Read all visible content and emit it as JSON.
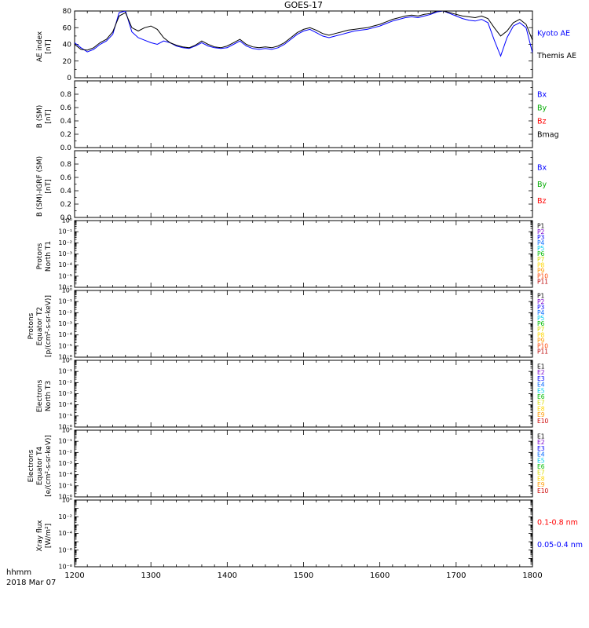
{
  "chart_data": {
    "type": "line",
    "title": "GOES-17",
    "x_unit": "hhmm",
    "date": "2018 Mar 07",
    "x_range": [
      1200,
      1800
    ],
    "x_ticks": [
      "1200",
      "1300",
      "1400",
      "1500",
      "1600",
      "1700",
      "1800"
    ],
    "panels": [
      {
        "id": "ae-index",
        "ylabel": [
          "AE index",
          "[nT]"
        ],
        "scale": "linear",
        "ylim": [
          0,
          80
        ],
        "yticks": [
          0,
          20,
          40,
          60,
          80
        ],
        "ytick_labels": [
          "0",
          "20",
          "40",
          "60",
          "80"
        ],
        "legend": [
          {
            "label": "Kyoto AE",
            "color": "#0000ff"
          },
          {
            "label": "Themis AE",
            "color": "#000000"
          }
        ],
        "x": [
          1200,
          1205,
          1210,
          1215,
          1220,
          1225,
          1230,
          1235,
          1240,
          1245,
          1250,
          1255,
          1300,
          1305,
          1310,
          1315,
          1320,
          1325,
          1330,
          1335,
          1340,
          1345,
          1350,
          1355,
          1400,
          1405,
          1410,
          1415,
          1420,
          1425,
          1430,
          1435,
          1440,
          1445,
          1450,
          1455,
          1500,
          1505,
          1510,
          1515,
          1520,
          1525,
          1530,
          1535,
          1540,
          1545,
          1550,
          1555,
          1600,
          1605,
          1610,
          1615,
          1620,
          1625,
          1630,
          1635,
          1640,
          1645,
          1650,
          1655,
          1700,
          1705,
          1710,
          1715,
          1720,
          1725,
          1730,
          1735,
          1740,
          1745,
          1750,
          1755,
          1800
        ],
        "series": [
          {
            "name": "Kyoto AE",
            "color": "#0000ff",
            "y": [
              42,
              36,
              31,
              34,
              40,
              44,
              52,
              78,
              80,
              55,
              48,
              45,
              42,
              40,
              44,
              42,
              38,
              36,
              35,
              38,
              42,
              38,
              36,
              35,
              36,
              40,
              44,
              38,
              35,
              34,
              35,
              34,
              36,
              40,
              46,
              52,
              56,
              58,
              54,
              50,
              48,
              50,
              52,
              54,
              56,
              57,
              58,
              60,
              62,
              65,
              68,
              70,
              72,
              73,
              72,
              74,
              76,
              79,
              80,
              77,
              74,
              71,
              69,
              68,
              70,
              66,
              45,
              26,
              48,
              62,
              66,
              60,
              30
            ]
          },
          {
            "name": "Themis AE",
            "color": "#000000",
            "y": [
              40,
              34,
              33,
              36,
              42,
              46,
              55,
              74,
              78,
              60,
              56,
              60,
              62,
              58,
              48,
              42,
              39,
              37,
              36,
              39,
              44,
              40,
              37,
              36,
              38,
              42,
              46,
              40,
              37,
              36,
              37,
              36,
              38,
              42,
              48,
              54,
              58,
              60,
              57,
              53,
              51,
              53,
              55,
              57,
              58,
              59,
              60,
              62,
              64,
              67,
              70,
              72,
              74,
              75,
              74,
              76,
              77,
              80,
              80,
              78,
              76,
              74,
              73,
              72,
              74,
              71,
              60,
              50,
              56,
              66,
              70,
              64,
              45
            ]
          }
        ]
      },
      {
        "id": "b-sm",
        "ylabel": [
          "B (SM)",
          "[nT]"
        ],
        "scale": "linear",
        "ylim": [
          0,
          1
        ],
        "yticks": [
          0,
          0.2,
          0.4,
          0.6,
          0.8,
          1
        ],
        "ytick_labels": [
          "0.0",
          "0.2",
          "0.4",
          "0.6",
          "0.8",
          ""
        ],
        "legend": [
          {
            "label": "Bx",
            "color": "#0000ff"
          },
          {
            "label": "By",
            "color": "#00aa00"
          },
          {
            "label": "Bz",
            "color": "#ff0000"
          },
          {
            "label": "Bmag",
            "color": "#000000"
          }
        ],
        "series": []
      },
      {
        "id": "b-sm-igrf",
        "ylabel": [
          "B (SM)-IGRF (SM)",
          "[nT]"
        ],
        "scale": "linear",
        "ylim": [
          0,
          1
        ],
        "yticks": [
          0,
          0.2,
          0.4,
          0.6,
          0.8,
          1
        ],
        "ytick_labels": [
          "0.0",
          "0.2",
          "0.4",
          "0.6",
          "0.8",
          ""
        ],
        "legend": [
          {
            "label": "Bx",
            "color": "#0000ff"
          },
          {
            "label": "By",
            "color": "#00aa00"
          },
          {
            "label": "Bz",
            "color": "#ff0000"
          }
        ],
        "series": []
      },
      {
        "id": "protons-north-t1",
        "ylabel": [
          "Protons",
          "North T1"
        ],
        "scale": "log",
        "ylim_exp": [
          -6,
          0
        ],
        "yticks_exp": [
          0,
          -1,
          -2,
          -3,
          -4,
          -5,
          -6
        ],
        "legend": [
          {
            "label": "P1",
            "color": "#000000"
          },
          {
            "label": "P2",
            "color": "#7a00cc"
          },
          {
            "label": "P3",
            "color": "#0000ff"
          },
          {
            "label": "P4",
            "color": "#0066ff"
          },
          {
            "label": "P5",
            "color": "#00ccee"
          },
          {
            "label": "P6",
            "color": "#00bb00"
          },
          {
            "label": "P7",
            "color": "#d8dc00"
          },
          {
            "label": "P8",
            "color": "#ffd700"
          },
          {
            "label": "P9",
            "color": "#ff9900"
          },
          {
            "label": "P10",
            "color": "#ff4400"
          },
          {
            "label": "P11",
            "color": "#bb0000"
          }
        ],
        "series": []
      },
      {
        "id": "protons-equator-t2",
        "ylabel": [
          "Protons",
          "Equator T2",
          "[p/(cm²-s-sr-keV)]"
        ],
        "scale": "log",
        "ylim_exp": [
          -6,
          0
        ],
        "yticks_exp": [
          0,
          -1,
          -2,
          -3,
          -4,
          -5,
          -6
        ],
        "legend": [
          {
            "label": "P1",
            "color": "#000000"
          },
          {
            "label": "P2",
            "color": "#7a00cc"
          },
          {
            "label": "P3",
            "color": "#0000ff"
          },
          {
            "label": "P4",
            "color": "#0066ff"
          },
          {
            "label": "P5",
            "color": "#00ccee"
          },
          {
            "label": "P6",
            "color": "#00bb00"
          },
          {
            "label": "P7",
            "color": "#d8dc00"
          },
          {
            "label": "P8",
            "color": "#ffd700"
          },
          {
            "label": "P9",
            "color": "#ff9900"
          },
          {
            "label": "P10",
            "color": "#ff4400"
          },
          {
            "label": "P11",
            "color": "#bb0000"
          }
        ],
        "series": []
      },
      {
        "id": "electrons-north-t3",
        "ylabel": [
          "Electrons",
          "North T3"
        ],
        "scale": "log",
        "ylim_exp": [
          -6,
          0
        ],
        "yticks_exp": [
          0,
          -1,
          -2,
          -3,
          -4,
          -5,
          -6
        ],
        "legend": [
          {
            "label": "E1",
            "color": "#000000"
          },
          {
            "label": "E2",
            "color": "#7a00cc"
          },
          {
            "label": "E3",
            "color": "#0000ff"
          },
          {
            "label": "E4",
            "color": "#0066ff"
          },
          {
            "label": "E5",
            "color": "#00ccee"
          },
          {
            "label": "E6",
            "color": "#00bb00"
          },
          {
            "label": "E7",
            "color": "#d8dc00"
          },
          {
            "label": "E8",
            "color": "#ffd700"
          },
          {
            "label": "E9",
            "color": "#ff9900"
          },
          {
            "label": "E10",
            "color": "#cc0000"
          }
        ],
        "series": []
      },
      {
        "id": "electrons-equator-t4",
        "ylabel": [
          "Electrons",
          "Equator T4",
          "[e/(cm²-s-sr-keV)]"
        ],
        "scale": "log",
        "ylim_exp": [
          -6,
          0
        ],
        "yticks_exp": [
          0,
          -1,
          -2,
          -3,
          -4,
          -5,
          -6
        ],
        "legend": [
          {
            "label": "E1",
            "color": "#000000"
          },
          {
            "label": "E2",
            "color": "#7a00cc"
          },
          {
            "label": "E3",
            "color": "#0000ff"
          },
          {
            "label": "E4",
            "color": "#0066ff"
          },
          {
            "label": "E5",
            "color": "#00ccee"
          },
          {
            "label": "E6",
            "color": "#00bb00"
          },
          {
            "label": "E7",
            "color": "#d8dc00"
          },
          {
            "label": "E8",
            "color": "#ffd700"
          },
          {
            "label": "E9",
            "color": "#ff9900"
          },
          {
            "label": "E10",
            "color": "#cc0000"
          }
        ],
        "series": []
      },
      {
        "id": "xray-flux",
        "ylabel": [
          "Xray flux",
          "[W/m²]"
        ],
        "scale": "log",
        "ylim_exp": [
          -8,
          0
        ],
        "yticks_exp": [
          0,
          -2,
          -4,
          -6,
          -8
        ],
        "legend": [
          {
            "label": "0.1-0.8 nm",
            "color": "#ff0000"
          },
          {
            "label": "0.05-0.4 nm",
            "color": "#0000ff"
          }
        ],
        "series": []
      }
    ]
  }
}
